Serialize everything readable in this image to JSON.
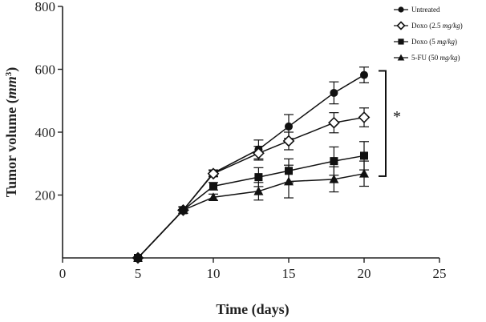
{
  "chart_data": {
    "type": "line",
    "title": "",
    "xlabel": "Time (days)",
    "ylabel_prefix": "Tumor volume (",
    "ylabel_unit": "mm",
    "ylabel_exp": "3",
    "ylabel_suffix": ")",
    "xlim": [
      0,
      25
    ],
    "ylim": [
      0,
      800
    ],
    "x_ticks": [
      0,
      5,
      10,
      15,
      20,
      25
    ],
    "y_ticks": [
      200,
      400,
      600,
      800
    ],
    "grid": false,
    "legend_position": "top-right",
    "significance_label": "*",
    "significance_range": [
      260,
      595
    ],
    "series": [
      {
        "name": "Untreated",
        "legend_main": "Untreated",
        "legend_italic": "",
        "legend_end": "",
        "marker": "circle",
        "x": [
          5,
          8,
          10,
          13,
          15,
          18,
          20
        ],
        "y": [
          0,
          152,
          270,
          345,
          418,
          525,
          582
        ],
        "err": [
          5,
          10,
          10,
          30,
          38,
          35,
          25
        ]
      },
      {
        "name": "Doxo (2.5 mg/kg)",
        "legend_main": "Doxo (2.5 ",
        "legend_italic": "mg/kg",
        "legend_end": ")",
        "marker": "diamond-open",
        "x": [
          5,
          8,
          10,
          13,
          15,
          18,
          20
        ],
        "y": [
          0,
          152,
          268,
          333,
          372,
          430,
          447
        ],
        "err": [
          5,
          10,
          10,
          22,
          28,
          32,
          30
        ]
      },
      {
        "name": "Doxo (5 mg/kg)",
        "legend_main": "Doxo (5 ",
        "legend_italic": "mg/kg",
        "legend_end": ")",
        "marker": "square",
        "x": [
          5,
          8,
          10,
          13,
          15,
          18,
          20
        ],
        "y": [
          0,
          152,
          228,
          257,
          277,
          308,
          325
        ],
        "err": [
          5,
          10,
          12,
          30,
          38,
          45,
          45
        ]
      },
      {
        "name": "5-FU (50 mg/kg)",
        "legend_main": "5-FU (50 ",
        "legend_italic": "mg/kg",
        "legend_end": ")",
        "marker": "triangle",
        "x": [
          5,
          8,
          10,
          13,
          15,
          18,
          20
        ],
        "y": [
          0,
          152,
          193,
          212,
          243,
          250,
          268
        ],
        "err": [
          5,
          10,
          10,
          28,
          52,
          40,
          40
        ]
      }
    ]
  }
}
